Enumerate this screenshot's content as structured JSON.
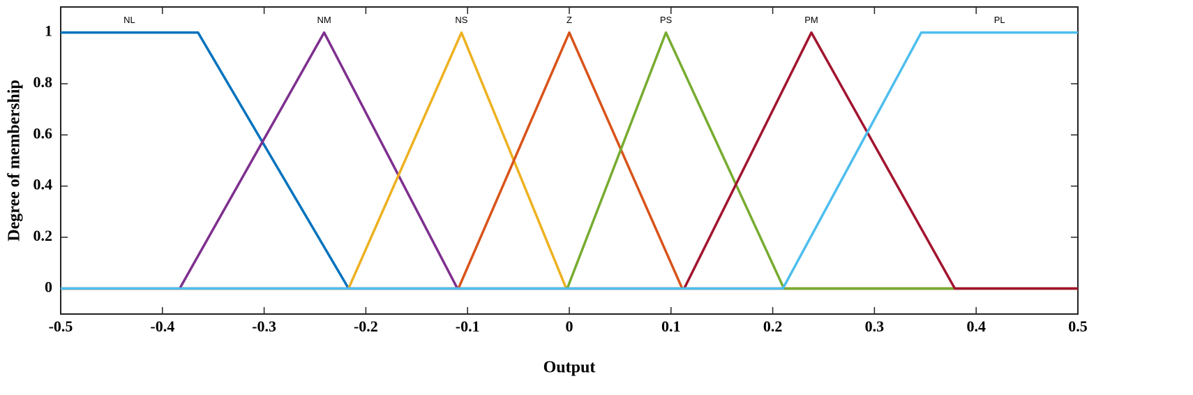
{
  "chart_data": {
    "type": "line",
    "xlabel": "Output",
    "ylabel": "Degree of membership",
    "xlim": [
      -0.5,
      0.5
    ],
    "ylim": [
      -0.1,
      1.1
    ],
    "xticks": [
      -0.5,
      -0.4,
      -0.3,
      -0.2,
      -0.1,
      0,
      0.1,
      0.2,
      0.3,
      0.4,
      0.5
    ],
    "yticks": [
      0,
      0.2,
      0.4,
      0.6,
      0.8,
      1
    ],
    "series": [
      {
        "name": "NL",
        "color": "#0072BD",
        "x": [
          -0.5,
          -0.365,
          -0.217,
          0.5
        ],
        "values": [
          1,
          1,
          0,
          0
        ]
      },
      {
        "name": "NM",
        "color": "#7E2F8E",
        "x": [
          -0.5,
          -0.383,
          -0.241,
          -0.11,
          0.5
        ],
        "values": [
          0,
          0,
          1,
          0,
          0
        ]
      },
      {
        "name": "NS",
        "color": "#EDB120",
        "x": [
          -0.5,
          -0.217,
          -0.106,
          -0.003,
          0.5
        ],
        "values": [
          0,
          0,
          1,
          0,
          0
        ]
      },
      {
        "name": "Z",
        "color": "#D95319",
        "x": [
          -0.5,
          -0.109,
          0,
          0.111,
          0.5
        ],
        "values": [
          0,
          0,
          1,
          0,
          0
        ]
      },
      {
        "name": "PS",
        "color": "#77AC30",
        "x": [
          -0.5,
          -0.002,
          0.095,
          0.211,
          0.5
        ],
        "values": [
          0,
          0,
          1,
          0,
          0
        ]
      },
      {
        "name": "PM",
        "color": "#A2142F",
        "x": [
          -0.5,
          0.113,
          0.238,
          0.379,
          0.5
        ],
        "values": [
          0,
          0,
          1,
          0,
          0
        ]
      },
      {
        "name": "PL",
        "color": "#4DBEEE",
        "x": [
          -0.5,
          0.21,
          0.346,
          0.5
        ],
        "values": [
          0,
          0,
          1,
          1
        ]
      }
    ]
  }
}
